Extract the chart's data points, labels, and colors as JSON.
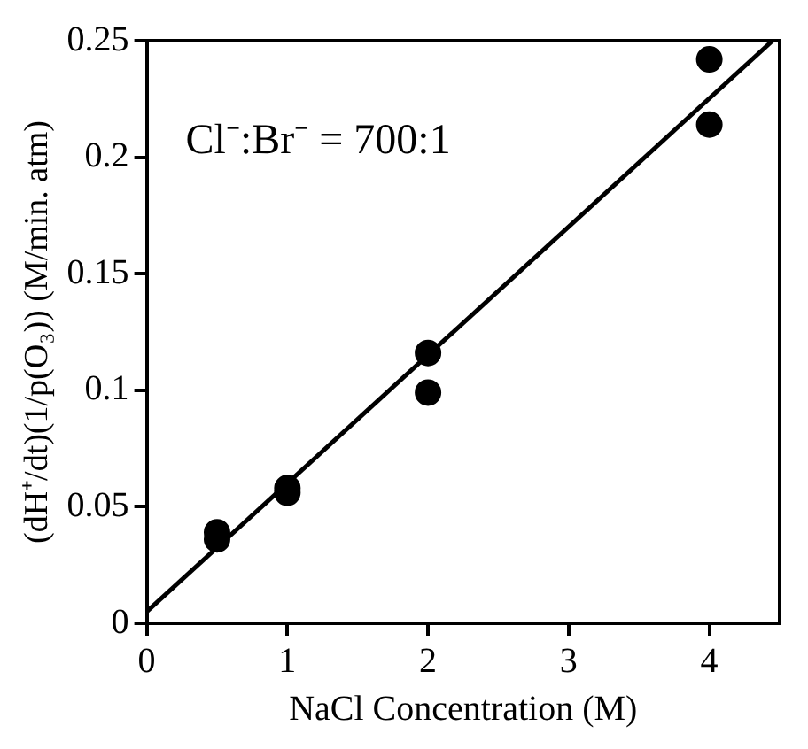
{
  "chart_data": {
    "type": "scatter",
    "xlabel": "NaCl Concentration (M)",
    "ylabel": "(dH⁺/dt)(1/p(O₃)) (M/min. atm)",
    "annotations": [
      "Cl⁻:Br⁻ = 700:1"
    ],
    "xlim": [
      0,
      4.5
    ],
    "xticks": [
      0,
      1,
      2,
      3,
      4
    ],
    "ylim": [
      0,
      0.25
    ],
    "yticks": [
      0,
      0.05,
      0.1,
      0.15,
      0.2,
      0.25
    ],
    "grid": false,
    "legend": false,
    "marker": "circle",
    "series": [
      {
        "color": "#000000",
        "x": [
          0.5,
          0.5,
          1,
          1,
          2,
          2,
          4,
          4
        ],
        "values": [
          0.039,
          0.036,
          0.058,
          0.056,
          0.116,
          0.099,
          0.242,
          0.214
        ]
      },
      {
        "type": "line",
        "color": "#000000",
        "x": [
          0,
          4.45
        ],
        "values": [
          0.005,
          0.25
        ],
        "marker": "none",
        "line_style": "solid"
      }
    ]
  }
}
